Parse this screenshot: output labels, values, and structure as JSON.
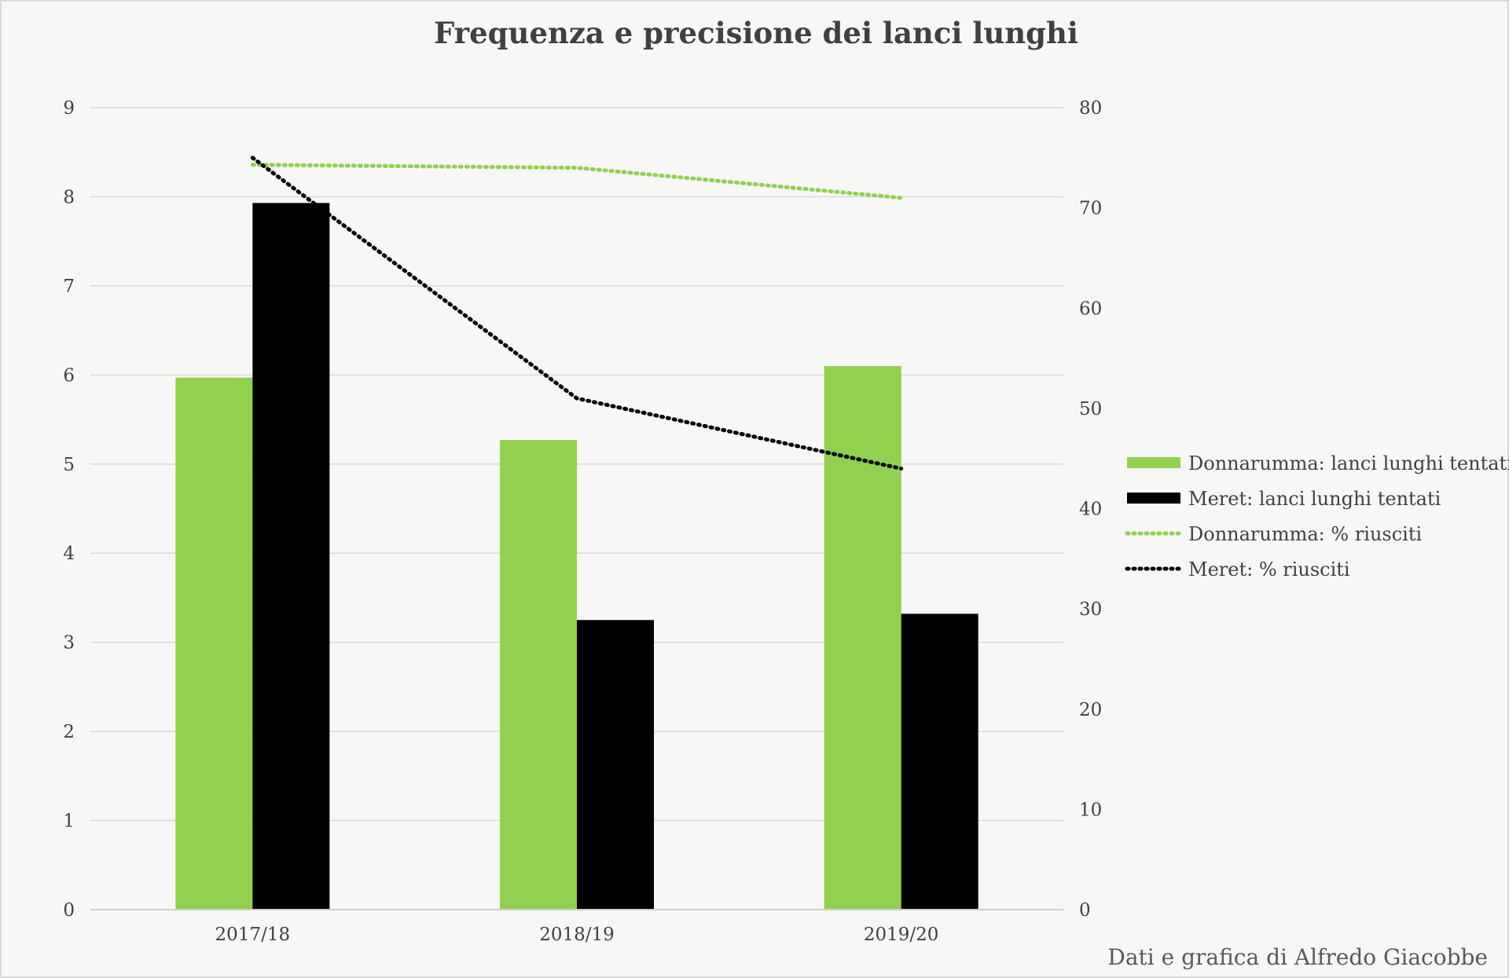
{
  "chart_data": {
    "type": "bar",
    "title": "Frequenza e precisione dei lanci lunghi",
    "categories": [
      "2017/18",
      "2018/19",
      "2019/20"
    ],
    "series": [
      {
        "name": "Donnarumma: lanci lunghi tentati",
        "kind": "bar",
        "axis": "left",
        "color": "#92d050",
        "values": [
          5.97,
          5.27,
          6.1
        ]
      },
      {
        "name": "Meret: lanci lunghi tentati",
        "kind": "bar",
        "axis": "left",
        "color": "#000000",
        "values": [
          7.93,
          3.25,
          3.32
        ]
      },
      {
        "name": "Donnarumma: % riusciti",
        "kind": "line",
        "style": "dotted",
        "axis": "right",
        "color": "#92d050",
        "values": [
          74.3,
          74.0,
          71.0
        ]
      },
      {
        "name": "Meret: % riusciti",
        "kind": "line",
        "style": "dotted",
        "axis": "right",
        "color": "#000000",
        "values": [
          75.0,
          51.0,
          44.0
        ]
      }
    ],
    "y_left": {
      "min": 0,
      "max": 9,
      "ticks": [
        0,
        1,
        2,
        3,
        4,
        5,
        6,
        7,
        8,
        9
      ]
    },
    "y_right": {
      "min": 0,
      "max": 80,
      "ticks": [
        0,
        10,
        20,
        30,
        40,
        50,
        60,
        70,
        80
      ]
    },
    "grid": true,
    "legend_position": "right"
  },
  "credit": "Dati e grafica di Alfredo Giacobbe"
}
